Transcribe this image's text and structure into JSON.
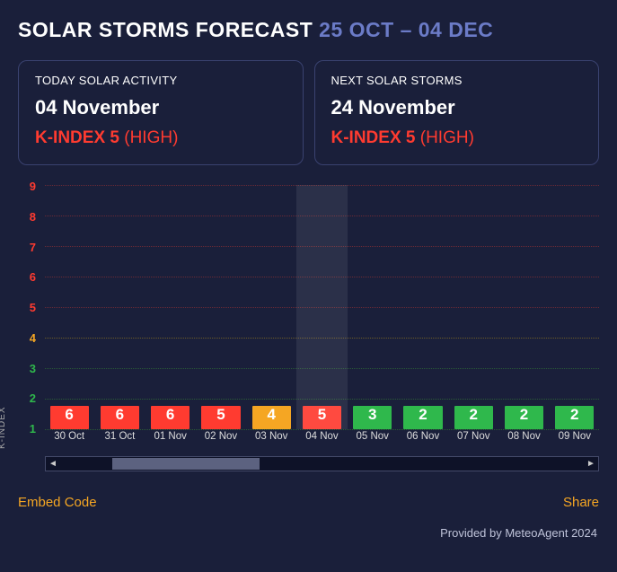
{
  "header": {
    "title_prefix": "SOLAR STORMS FORECAST",
    "date_range": "25 OCT – 04 DEC"
  },
  "cards": {
    "today": {
      "label": "TODAY SOLAR ACTIVITY",
      "date": "04 November",
      "k_text": "K-INDEX 5",
      "level": "(HIGH)",
      "level_color": "#ff3b30"
    },
    "next": {
      "label": "NEXT SOLAR STORMS",
      "date": "24 November",
      "k_text": "K-INDEX 5",
      "level": "(HIGH)",
      "level_color": "#ff3b30"
    }
  },
  "chart": {
    "type": "bar",
    "y_axis_label": "K-INDEX",
    "ylim": [
      1,
      9
    ],
    "y_ticks": [
      {
        "v": 9,
        "color": "#ff3b30"
      },
      {
        "v": 8,
        "color": "#ff3b30"
      },
      {
        "v": 7,
        "color": "#ff3b30"
      },
      {
        "v": 6,
        "color": "#ff3b30"
      },
      {
        "v": 5,
        "color": "#ff3b30"
      },
      {
        "v": 4,
        "color": "#f5a623"
      },
      {
        "v": 3,
        "color": "#2fb84c"
      },
      {
        "v": 2,
        "color": "#2fb84c"
      },
      {
        "v": 1,
        "color": "#2fb84c"
      }
    ],
    "grid_color_red": "#6a2a36",
    "grid_color_amber": "#6a5a2a",
    "grid_color_green": "#2a5a36",
    "highlight_index": 5,
    "bars": [
      {
        "label": "30 Oct",
        "value": 6,
        "color": "#ff3b30"
      },
      {
        "label": "31 Oct",
        "value": 6,
        "color": "#ff3b30"
      },
      {
        "label": "01 Nov",
        "value": 6,
        "color": "#ff3b30"
      },
      {
        "label": "02 Nov",
        "value": 5,
        "color": "#ff3b30"
      },
      {
        "label": "03 Nov",
        "value": 4,
        "color": "#f5a623"
      },
      {
        "label": "04 Nov",
        "value": 5,
        "color": "#ff3b30"
      },
      {
        "label": "05 Nov",
        "value": 3,
        "color": "#2fb84c"
      },
      {
        "label": "06 Nov",
        "value": 2,
        "color": "#2fb84c"
      },
      {
        "label": "07 Nov",
        "value": 2,
        "color": "#2fb84c"
      },
      {
        "label": "08 Nov",
        "value": 2,
        "color": "#2fb84c"
      },
      {
        "label": "09 Nov",
        "value": 2,
        "color": "#2fb84c"
      }
    ],
    "baseline_value": 1,
    "bar_top_offset": 0.75,
    "label_fontsize": 11.5,
    "value_fontsize": 17,
    "background_color": "#1a1f3a"
  },
  "scrollbar": {
    "thumb_start_pct": 10,
    "thumb_width_pct": 28
  },
  "footer": {
    "embed": "Embed Code",
    "share": "Share",
    "provided": "Provided by MeteoAgent 2024"
  }
}
